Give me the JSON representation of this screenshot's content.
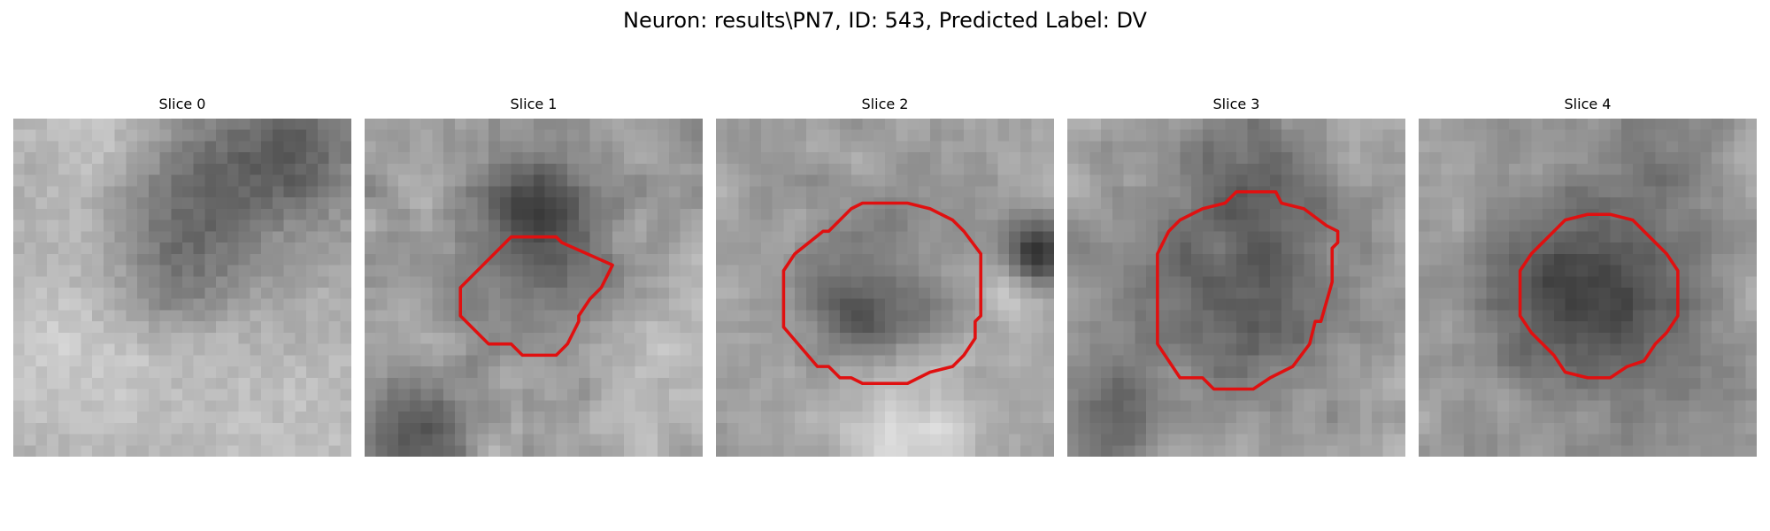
{
  "figure": {
    "title": "Neuron: results\\PN7, ID: 543, Predicted Label: DV"
  },
  "slices": [
    {
      "title": "Slice 0",
      "has_contour": false
    },
    {
      "title": "Slice 1",
      "has_contour": true
    },
    {
      "title": "Slice 2",
      "has_contour": true
    },
    {
      "title": "Slice 3",
      "has_contour": true
    },
    {
      "title": "Slice 4",
      "has_contour": true
    }
  ],
  "colors": {
    "contour": "#e01010",
    "colormap": "gray"
  }
}
